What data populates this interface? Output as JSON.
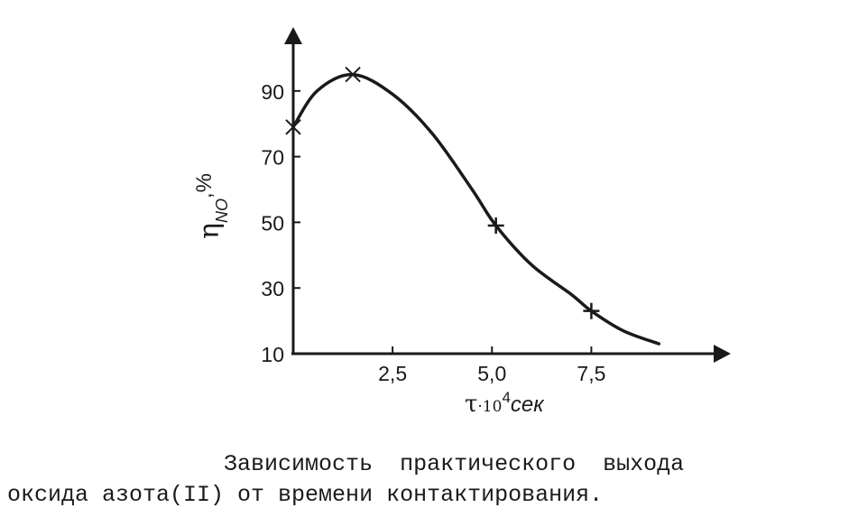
{
  "chart_data": {
    "type": "line",
    "xlabel": {
      "symbol": "τ",
      "mid": "·10",
      "exp": "4",
      "unit": "сек"
    },
    "ylabel": {
      "symbol": "η",
      "sub": "NO",
      "unit": ",%"
    },
    "x_ticks": [
      "2,5",
      "5,0",
      "7,5"
    ],
    "y_ticks": [
      "10",
      "30",
      "50",
      "70",
      "90"
    ],
    "xlim": [
      0,
      11
    ],
    "ylim": [
      10,
      105
    ],
    "series": [
      {
        "x": [
          0,
          0.6,
          1.5,
          2.5,
          3.5,
          4.5,
          5.1,
          6,
          7.0,
          7.5,
          8.3,
          9.2
        ],
        "y": [
          79,
          90,
          95,
          89,
          77,
          60,
          49,
          37,
          28,
          23,
          17,
          13
        ],
        "markers": [
          {
            "x": 0,
            "y": 79,
            "symbol": "x"
          },
          {
            "x": 1.5,
            "y": 95,
            "symbol": "x"
          },
          {
            "x": 5.1,
            "y": 49,
            "symbol": "+"
          },
          {
            "x": 7.5,
            "y": 23,
            "symbol": "+"
          }
        ]
      }
    ],
    "grid": false,
    "legend": "none"
  },
  "caption": {
    "line1": "                Зависимость  практического  выхода",
    "line2": "оксида азота(II) от времени контактирования."
  }
}
